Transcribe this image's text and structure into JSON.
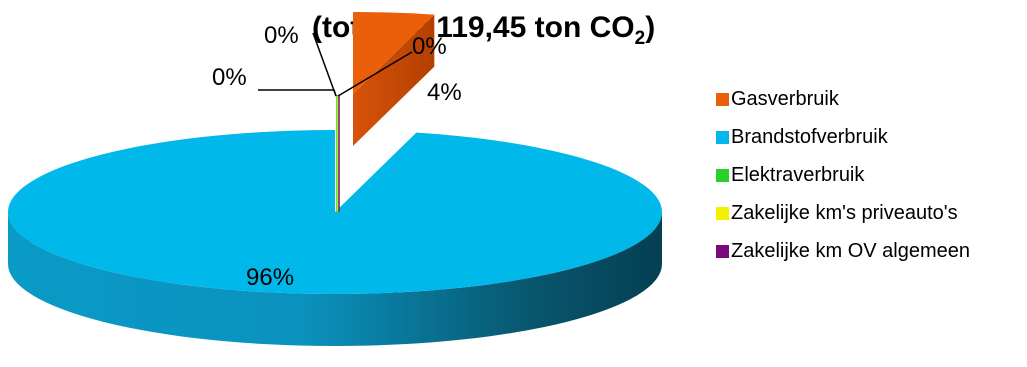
{
  "chart_data": {
    "type": "pie",
    "title_main": "(totaal = 119,45 ton CO",
    "title_sub": "2",
    "title_end": ")",
    "slices": [
      {
        "name": "Gasverbruik",
        "value": 4,
        "label": "4%",
        "color": "#ec5f0a",
        "exploded": true
      },
      {
        "name": "Brandstofverbruik",
        "value": 96,
        "label": "96%",
        "color": "#00b8ea",
        "exploded": false
      },
      {
        "name": "Elektraverbruik",
        "value": 0,
        "label": "0%",
        "color": "#28d228",
        "exploded": false
      },
      {
        "name": "Zakelijke km's priveauto's",
        "value": 0,
        "label": "0%",
        "color": "#f2f200",
        "exploded": false
      },
      {
        "name": "Zakelijke km OV algemeen",
        "value": 0,
        "label": "0%",
        "color": "#7a0a7a",
        "exploded": false
      }
    ],
    "legend_position": "right",
    "style": "3d-exploded-pie"
  }
}
